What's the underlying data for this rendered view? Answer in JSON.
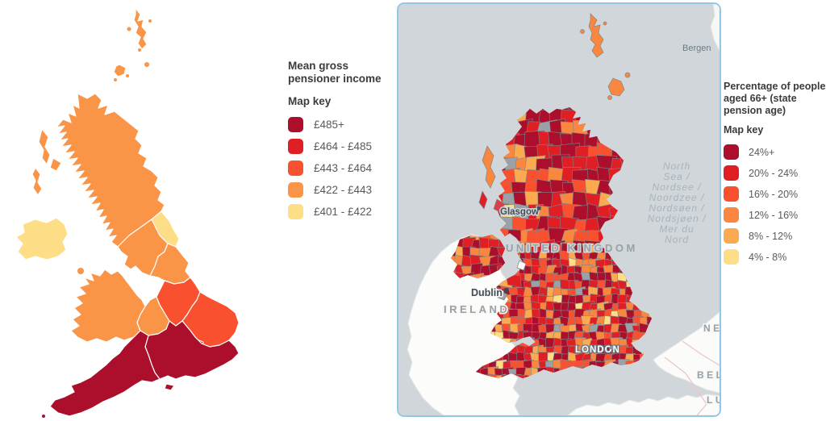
{
  "left_map": {
    "title": "Mean gross pensioner income",
    "map_key_label": "Map key",
    "legend": [
      {
        "label": "£485+",
        "color": "#ab0f2b"
      },
      {
        "label": "£464 - £485",
        "color": "#df1f24"
      },
      {
        "label": "£443 - £464",
        "color": "#f95130"
      },
      {
        "label": "£422 - £443",
        "color": "#fa9447"
      },
      {
        "label": "£401 - £422",
        "color": "#fedd87"
      }
    ],
    "regions": [
      {
        "name": "Scotland",
        "color": "#fa9447"
      },
      {
        "name": "Northern Ireland",
        "color": "#fedd87"
      },
      {
        "name": "North East",
        "color": "#fedd87"
      },
      {
        "name": "North West",
        "color": "#fa9447"
      },
      {
        "name": "Yorkshire and The Humber",
        "color": "#fa9447"
      },
      {
        "name": "Wales",
        "color": "#fa9447"
      },
      {
        "name": "West Midlands",
        "color": "#fa9447"
      },
      {
        "name": "East Midlands",
        "color": "#f95130"
      },
      {
        "name": "East of England",
        "color": "#f95130"
      },
      {
        "name": "London",
        "color": "#df1f24"
      },
      {
        "name": "South East",
        "color": "#ab0f2b"
      },
      {
        "name": "South West",
        "color": "#ab0f2b"
      }
    ]
  },
  "right_map": {
    "title": "Percentage of people aged 66+ (state pension age)",
    "map_key_label": "Map key",
    "legend": [
      {
        "label": "24%+",
        "color": "#ab0f2b"
      },
      {
        "label": "20% - 24%",
        "color": "#df1f24"
      },
      {
        "label": "16% - 20%",
        "color": "#f95130"
      },
      {
        "label": "12% - 16%",
        "color": "#f9873f"
      },
      {
        "label": "8% - 12%",
        "color": "#fbaa50"
      },
      {
        "label": "4% - 8%",
        "color": "#fedd87"
      }
    ],
    "labels": {
      "glasgow": "Glasgow",
      "dublin": "Dublin",
      "ireland": "IRELAND",
      "united_kingdom": "UNITED KINGDOM",
      "london": "LONDON",
      "bergen": "Bergen",
      "netherlands": "NETH",
      "belgium": "BELGI",
      "luxembourg": "LUX",
      "sea_lines": [
        "North",
        "Sea /",
        "Nordsee /",
        "Noordzee /",
        "Nordsøen /",
        "Nordsjøen /",
        "Mer du",
        "Nord"
      ]
    },
    "colors": {
      "sea": "#d0d6da",
      "frame_border": "#8fc9e6",
      "foreign_land": "#fbfbf9",
      "cell_border": "#7d868c",
      "urban_gray": "#9aa2a7"
    }
  }
}
